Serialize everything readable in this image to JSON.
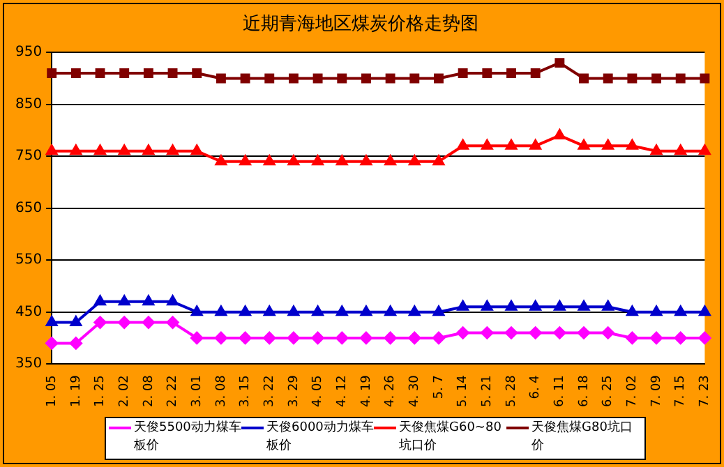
{
  "chart_data": {
    "type": "line",
    "title": "近期青海地区煤炭价格走势图",
    "categories": [
      "1. 05",
      "1. 19",
      "1. 25",
      "2. 02",
      "2. 08",
      "2. 22",
      "3. 01",
      "3. 08",
      "3. 15",
      "3. 22",
      "3. 29",
      "4. 05",
      "4. 12",
      "4. 19",
      "4. 26",
      "4. 30",
      "5. 7",
      "5. 14",
      "5. 21",
      "5. 28",
      "6. 4",
      "6. 11",
      "6. 18",
      "6. 25",
      "7. 02",
      "7. 09",
      "7. 15",
      "7. 23"
    ],
    "series": [
      {
        "name": "天俊5500动力煤车板价",
        "color": "#ff00ff",
        "marker": "diamond",
        "values": [
          390,
          390,
          430,
          430,
          430,
          430,
          400,
          400,
          400,
          400,
          400,
          400,
          400,
          400,
          400,
          400,
          400,
          410,
          410,
          410,
          410,
          410,
          410,
          410,
          400,
          400,
          400,
          400
        ]
      },
      {
        "name": "天俊6000动力煤车板价",
        "color": "#0000cc",
        "marker": "triangle",
        "values": [
          430,
          430,
          470,
          470,
          470,
          470,
          450,
          450,
          450,
          450,
          450,
          450,
          450,
          450,
          450,
          450,
          450,
          460,
          460,
          460,
          460,
          460,
          460,
          460,
          450,
          450,
          450,
          450
        ]
      },
      {
        "name": "天俊焦煤G60~80坑口价",
        "color": "#ff0000",
        "marker": "triangle",
        "values": [
          760,
          760,
          760,
          760,
          760,
          760,
          760,
          740,
          740,
          740,
          740,
          740,
          740,
          740,
          740,
          740,
          740,
          770,
          770,
          770,
          770,
          790,
          770,
          770,
          770,
          760,
          760,
          760
        ]
      },
      {
        "name": "天俊焦煤G80坑口价",
        "color": "#800000",
        "marker": "square",
        "values": [
          910,
          910,
          910,
          910,
          910,
          910,
          910,
          900,
          900,
          900,
          900,
          900,
          900,
          900,
          900,
          900,
          900,
          910,
          910,
          910,
          910,
          930,
          900,
          900,
          900,
          900,
          900,
          900
        ]
      }
    ],
    "ylim": [
      350,
      950
    ],
    "yticks": [
      350,
      450,
      550,
      650,
      750,
      850,
      950
    ],
    "grid": "y",
    "legend": "bottom"
  }
}
